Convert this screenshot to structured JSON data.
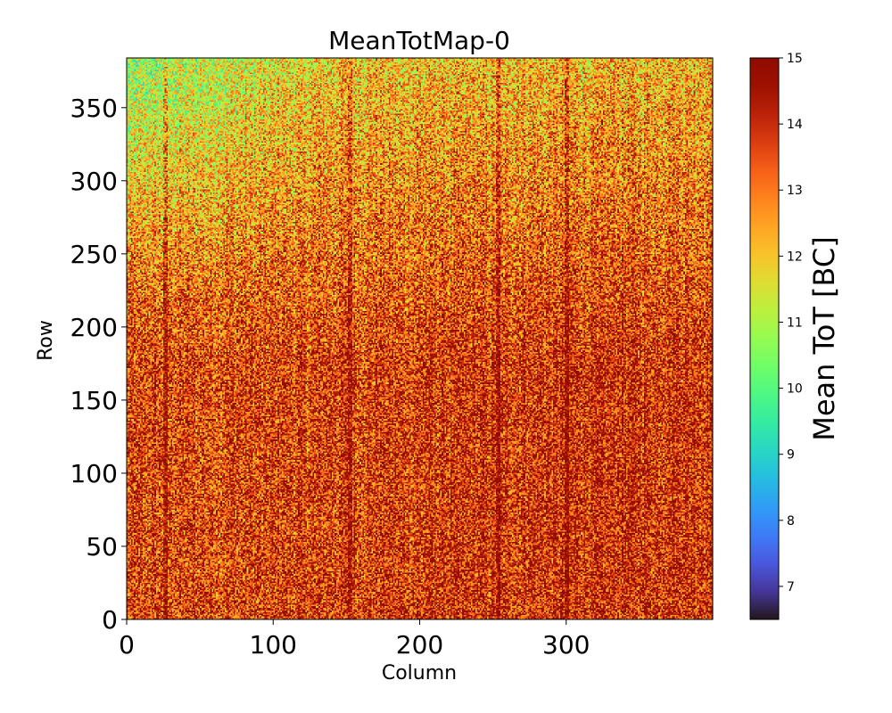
{
  "chart_data": {
    "type": "heatmap",
    "title": "MeanTotMap-0",
    "xlabel": "Column",
    "ylabel": "Row",
    "xlim": [
      0,
      400
    ],
    "ylim": [
      0,
      384
    ],
    "x_ticks": [
      0,
      100,
      200,
      300
    ],
    "y_ticks": [
      0,
      50,
      100,
      150,
      200,
      250,
      300,
      350
    ],
    "x_tick_labels": [
      "0",
      "100",
      "200",
      "300"
    ],
    "y_tick_labels": [
      "0",
      "50",
      "100",
      "150",
      "200",
      "250",
      "300",
      "350"
    ],
    "colormap": "turbo",
    "colorbar": {
      "label": "Mean ToT [BC]",
      "range": [
        6.5,
        15
      ],
      "ticks": [
        7,
        8,
        9,
        10,
        11,
        12,
        13,
        14,
        15
      ],
      "tick_labels": [
        "7",
        "8",
        "9",
        "10",
        "11",
        "12",
        "13",
        "14",
        "15"
      ],
      "placement": "right"
    },
    "value_summary": {
      "typical_range": [
        11,
        15
      ],
      "lower_values_region": "top-left (high rows, low columns), around 9-11",
      "dark_columns_approx": [
        26,
        152,
        253,
        300
      ]
    }
  }
}
